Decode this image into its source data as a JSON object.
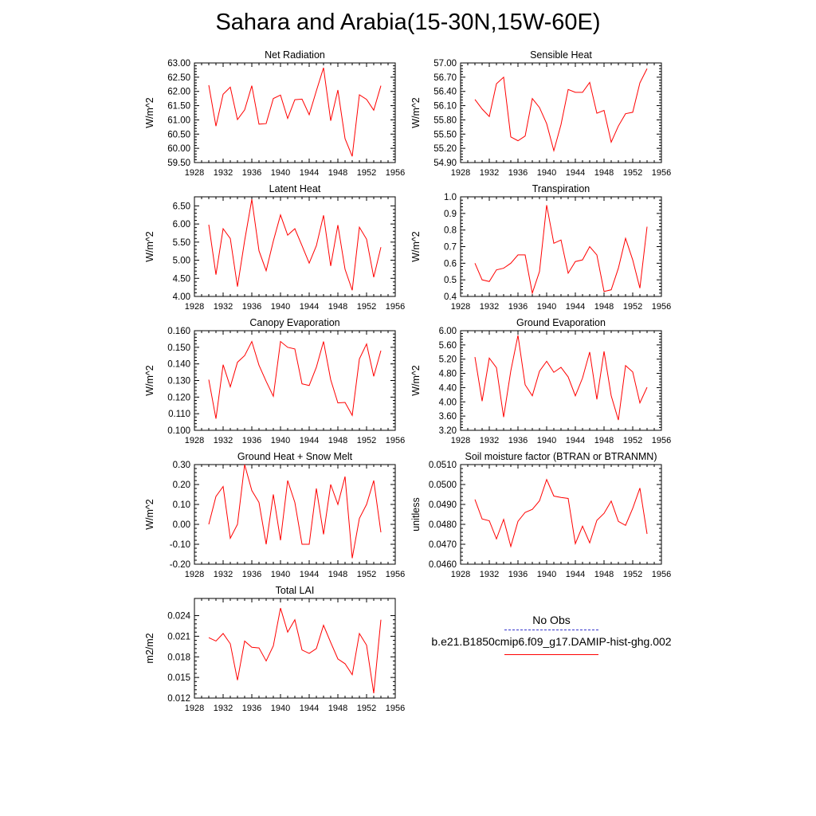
{
  "title": "Sahara and Arabia(15-30N,15W-60E)",
  "legend": {
    "obs_label": "No Obs",
    "obs_color": "#3333cc",
    "model_label": "b.e21.B1850cmip6.f09_g17.DAMIP-hist-ghg.002",
    "model_color": "#ff0000"
  },
  "chart_data": [
    {
      "type": "line",
      "title": "Net Radiation",
      "ylabel": "W/m^2",
      "xlim": [
        1928,
        1956
      ],
      "xticks": [
        1928,
        1932,
        1936,
        1940,
        1944,
        1948,
        1952,
        1956
      ],
      "ylim": [
        59.5,
        63.0
      ],
      "yticks": [
        "59.50",
        "60.00",
        "60.50",
        "61.00",
        "61.50",
        "62.00",
        "62.50",
        "63.00"
      ],
      "x": [
        1930,
        1931,
        1932,
        1933,
        1934,
        1935,
        1936,
        1937,
        1938,
        1939,
        1940,
        1941,
        1942,
        1943,
        1944,
        1945,
        1946,
        1947,
        1948,
        1949,
        1950,
        1951,
        1952,
        1953,
        1954
      ],
      "series": [
        {
          "values": [
            62.22,
            60.78,
            61.9,
            62.15,
            61.01,
            61.35,
            62.2,
            60.85,
            60.87,
            61.75,
            61.87,
            61.05,
            61.71,
            61.73,
            61.18,
            62.02,
            62.83,
            60.97,
            62.05,
            60.34,
            59.72,
            61.88,
            61.72,
            61.34,
            62.2
          ]
        }
      ]
    },
    {
      "type": "line",
      "title": "Sensible Heat",
      "ylabel": "W/m^2",
      "xlim": [
        1928,
        1956
      ],
      "xticks": [
        1928,
        1932,
        1936,
        1940,
        1944,
        1948,
        1952,
        1956
      ],
      "ylim": [
        54.9,
        57.0
      ],
      "yticks": [
        "54.90",
        "55.20",
        "55.50",
        "55.80",
        "56.10",
        "56.40",
        "56.70",
        "57.00"
      ],
      "x": [
        1930,
        1931,
        1932,
        1933,
        1934,
        1935,
        1936,
        1937,
        1938,
        1939,
        1940,
        1941,
        1942,
        1943,
        1944,
        1945,
        1946,
        1947,
        1948,
        1949,
        1950,
        1951,
        1952,
        1953,
        1954
      ],
      "series": [
        {
          "values": [
            56.23,
            56.03,
            55.87,
            56.56,
            56.7,
            55.44,
            55.36,
            55.46,
            56.25,
            56.06,
            55.72,
            55.15,
            55.7,
            56.44,
            56.38,
            56.38,
            56.59,
            55.94,
            56.0,
            55.33,
            55.67,
            55.93,
            55.96,
            56.58,
            56.88
          ]
        }
      ]
    },
    {
      "type": "line",
      "title": "Latent Heat",
      "ylabel": "W/m^2",
      "xlim": [
        1928,
        1956
      ],
      "xticks": [
        1928,
        1932,
        1936,
        1940,
        1944,
        1948,
        1952,
        1956
      ],
      "ylim": [
        4.0,
        6.75
      ],
      "yticks": [
        "4.00",
        "4.50",
        "5.00",
        "5.50",
        "6.00",
        "6.50"
      ],
      "x": [
        1930,
        1931,
        1932,
        1933,
        1934,
        1935,
        1936,
        1937,
        1938,
        1939,
        1940,
        1941,
        1942,
        1943,
        1944,
        1945,
        1946,
        1947,
        1948,
        1949,
        1950,
        1951,
        1952,
        1953,
        1954
      ],
      "series": [
        {
          "values": [
            5.98,
            4.6,
            5.87,
            5.6,
            4.27,
            5.54,
            6.68,
            5.26,
            4.71,
            5.53,
            6.25,
            5.69,
            5.87,
            5.4,
            4.92,
            5.4,
            6.24,
            4.84,
            5.97,
            4.75,
            4.17,
            5.91,
            5.58,
            4.53,
            5.36
          ]
        }
      ]
    },
    {
      "type": "line",
      "title": "Transpiration",
      "ylabel": "W/m^2",
      "xlim": [
        1928,
        1956
      ],
      "xticks": [
        1928,
        1932,
        1936,
        1940,
        1944,
        1948,
        1952,
        1956
      ],
      "ylim": [
        0.4,
        1.0
      ],
      "yticks": [
        "0.4",
        "0.5",
        "0.6",
        "0.7",
        "0.8",
        "0.9",
        "1.0"
      ],
      "x": [
        1930,
        1931,
        1932,
        1933,
        1934,
        1935,
        1936,
        1937,
        1938,
        1939,
        1940,
        1941,
        1942,
        1943,
        1944,
        1945,
        1946,
        1947,
        1948,
        1949,
        1950,
        1951,
        1952,
        1953,
        1954
      ],
      "series": [
        {
          "values": [
            0.6,
            0.5,
            0.49,
            0.56,
            0.57,
            0.6,
            0.65,
            0.65,
            0.42,
            0.55,
            0.95,
            0.72,
            0.74,
            0.54,
            0.61,
            0.62,
            0.7,
            0.65,
            0.43,
            0.44,
            0.57,
            0.75,
            0.62,
            0.45,
            0.82
          ]
        }
      ]
    },
    {
      "type": "line",
      "title": "Canopy Evaporation",
      "ylabel": "W/m^2",
      "xlim": [
        1928,
        1956
      ],
      "xticks": [
        1928,
        1932,
        1936,
        1940,
        1944,
        1948,
        1952,
        1956
      ],
      "ylim": [
        0.1,
        0.16
      ],
      "yticks": [
        "0.100",
        "0.110",
        "0.120",
        "0.130",
        "0.140",
        "0.150",
        "0.160"
      ],
      "x": [
        1930,
        1931,
        1932,
        1933,
        1934,
        1935,
        1936,
        1937,
        1938,
        1939,
        1940,
        1941,
        1942,
        1943,
        1944,
        1945,
        1946,
        1947,
        1948,
        1949,
        1950,
        1951,
        1952,
        1953,
        1954
      ],
      "series": [
        {
          "values": [
            0.1305,
            0.107,
            0.1395,
            0.1262,
            0.141,
            0.145,
            0.1535,
            0.1392,
            0.1295,
            0.1205,
            0.1535,
            0.15,
            0.149,
            0.128,
            0.127,
            0.138,
            0.1535,
            0.1305,
            0.1165,
            0.1168,
            0.109,
            0.143,
            0.152,
            0.1325,
            0.148
          ]
        }
      ]
    },
    {
      "type": "line",
      "title": "Ground Evaporation",
      "ylabel": "W/m^2",
      "xlim": [
        1928,
        1956
      ],
      "xticks": [
        1928,
        1932,
        1936,
        1940,
        1944,
        1948,
        1952,
        1956
      ],
      "ylim": [
        3.2,
        6.0
      ],
      "yticks": [
        "3.20",
        "3.60",
        "4.00",
        "4.40",
        "4.80",
        "5.20",
        "5.60",
        "6.00"
      ],
      "x": [
        1930,
        1931,
        1932,
        1933,
        1934,
        1935,
        1936,
        1937,
        1938,
        1939,
        1940,
        1941,
        1942,
        1943,
        1944,
        1945,
        1946,
        1947,
        1948,
        1949,
        1950,
        1951,
        1952,
        1953,
        1954
      ],
      "series": [
        {
          "values": [
            5.26,
            4.02,
            5.23,
            4.96,
            3.57,
            4.87,
            5.87,
            4.48,
            4.17,
            4.86,
            5.14,
            4.83,
            4.97,
            4.7,
            4.17,
            4.67,
            5.4,
            4.07,
            5.42,
            4.17,
            3.49,
            5.02,
            4.84,
            3.97,
            4.41
          ]
        }
      ]
    },
    {
      "type": "line",
      "title": "Ground Heat + Snow Melt",
      "ylabel": "W/m^2",
      "xlim": [
        1928,
        1956
      ],
      "xticks": [
        1928,
        1932,
        1936,
        1940,
        1944,
        1948,
        1952,
        1956
      ],
      "ylim": [
        -0.2,
        0.3
      ],
      "yticks": [
        "-0.20",
        "-0.10",
        "0.00",
        "0.10",
        "0.20",
        "0.30"
      ],
      "x": [
        1930,
        1931,
        1932,
        1933,
        1934,
        1935,
        1936,
        1937,
        1938,
        1939,
        1940,
        1941,
        1942,
        1943,
        1944,
        1945,
        1946,
        1947,
        1948,
        1949,
        1950,
        1951,
        1952,
        1953,
        1954
      ],
      "series": [
        {
          "values": [
            0.0,
            0.14,
            0.19,
            -0.07,
            0.0,
            0.3,
            0.17,
            0.11,
            -0.1,
            0.15,
            -0.08,
            0.22,
            0.11,
            -0.1,
            -0.1,
            0.18,
            -0.05,
            0.2,
            0.1,
            0.24,
            -0.17,
            0.03,
            0.1,
            0.22,
            -0.04
          ]
        }
      ]
    },
    {
      "type": "line",
      "title": "Soil moisture factor (BTRAN or BTRANMN)",
      "ylabel": "unitless",
      "xlim": [
        1928,
        1956
      ],
      "xticks": [
        1928,
        1932,
        1936,
        1940,
        1944,
        1948,
        1952,
        1956
      ],
      "ylim": [
        0.046,
        0.051
      ],
      "yticks": [
        "0.0460",
        "0.0470",
        "0.0480",
        "0.0490",
        "0.0500",
        "0.0510"
      ],
      "x": [
        1930,
        1931,
        1932,
        1933,
        1934,
        1935,
        1936,
        1937,
        1938,
        1939,
        1940,
        1941,
        1942,
        1943,
        1944,
        1945,
        1946,
        1947,
        1948,
        1949,
        1950,
        1951,
        1952,
        1953,
        1954
      ],
      "series": [
        {
          "values": [
            0.04925,
            0.04827,
            0.04818,
            0.04727,
            0.04825,
            0.04689,
            0.04815,
            0.0486,
            0.04875,
            0.04918,
            0.05025,
            0.04942,
            0.04935,
            0.0493,
            0.04703,
            0.04791,
            0.04707,
            0.0482,
            0.04855,
            0.04917,
            0.04815,
            0.04795,
            0.0488,
            0.04982,
            0.04752
          ]
        }
      ]
    },
    {
      "type": "line",
      "title": "Total LAI",
      "ylabel": "m2/m2",
      "xlim": [
        1928,
        1956
      ],
      "xticks": [
        1928,
        1932,
        1936,
        1940,
        1944,
        1948,
        1952,
        1956
      ],
      "ylim": [
        0.012,
        0.0265
      ],
      "yticks": [
        "0.012",
        "0.015",
        "0.018",
        "0.021",
        "0.024"
      ],
      "x": [
        1930,
        1931,
        1932,
        1933,
        1934,
        1935,
        1936,
        1937,
        1938,
        1939,
        1940,
        1941,
        1942,
        1943,
        1944,
        1945,
        1946,
        1947,
        1948,
        1949,
        1950,
        1951,
        1952,
        1953,
        1954
      ],
      "series": [
        {
          "values": [
            0.0208,
            0.0203,
            0.0214,
            0.0199,
            0.0146,
            0.0203,
            0.0194,
            0.0193,
            0.0174,
            0.0196,
            0.0251,
            0.0216,
            0.0234,
            0.019,
            0.0185,
            0.0192,
            0.0226,
            0.0201,
            0.0177,
            0.017,
            0.0154,
            0.0214,
            0.0197,
            0.0127,
            0.0234
          ]
        }
      ]
    }
  ]
}
